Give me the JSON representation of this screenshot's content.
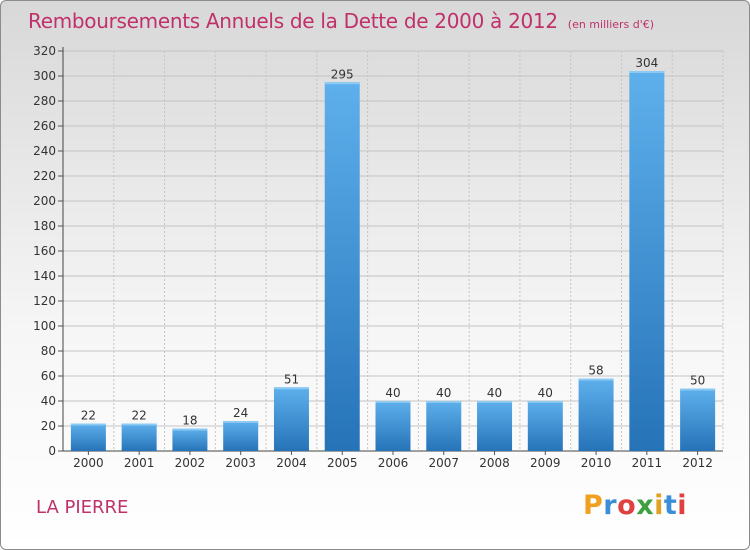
{
  "title": "Remboursements Annuels de la Dette de 2000 à 2012",
  "unit": "(en milliers d'€)",
  "commune": "LA PIERRE",
  "logo": {
    "text": "Proxiti",
    "colors": [
      "#f0a020",
      "#3a8fd8",
      "#e04040",
      "#40a040",
      "#e0a020",
      "#3a8fd8",
      "#e04040"
    ]
  },
  "colors": {
    "title": "#c0306a",
    "bar_light": "#5eb0ec",
    "bar_dark": "#2673b8"
  },
  "chart_data": {
    "type": "bar",
    "categories": [
      "2000",
      "2001",
      "2002",
      "2003",
      "2004",
      "2005",
      "2006",
      "2007",
      "2008",
      "2009",
      "2010",
      "2011",
      "2012"
    ],
    "values": [
      22,
      22,
      18,
      24,
      51,
      295,
      40,
      40,
      40,
      40,
      58,
      304,
      50
    ],
    "ylim": [
      0,
      320
    ],
    "yticks": [
      0,
      20,
      40,
      60,
      80,
      100,
      120,
      140,
      160,
      180,
      200,
      220,
      240,
      260,
      280,
      300,
      320
    ],
    "grid": true,
    "legend": "none"
  }
}
